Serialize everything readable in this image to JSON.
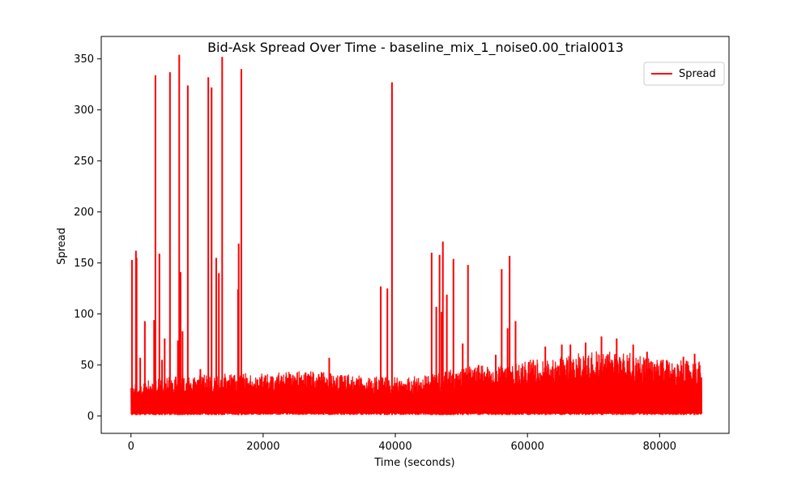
{
  "chart_data": {
    "type": "line",
    "title": "Bid-Ask Spread Over Time - baseline_mix_1_noise0.00_trial0013",
    "xlabel": "Time (seconds)",
    "ylabel": "Spread",
    "xlim": [
      -4500,
      90500
    ],
    "ylim": [
      -17,
      372
    ],
    "xticks": [
      0,
      20000,
      40000,
      60000,
      80000
    ],
    "yticks": [
      0,
      50,
      100,
      150,
      200,
      250,
      300,
      350
    ],
    "grid": false,
    "legend": {
      "position": "top-right",
      "entries": [
        "Spread"
      ]
    },
    "colors": {
      "series": "#ff0000",
      "axes": "#000000",
      "background": "#ffffff"
    },
    "series": [
      {
        "name": "Spread",
        "x_range": [
          0,
          86400
        ],
        "baseline_min": 1,
        "envelope": [
          [
            0,
            32
          ],
          [
            5000,
            38
          ],
          [
            10000,
            40
          ],
          [
            15000,
            42
          ],
          [
            20000,
            42
          ],
          [
            25000,
            44
          ],
          [
            30000,
            44
          ],
          [
            35000,
            40
          ],
          [
            40000,
            38
          ],
          [
            45000,
            40
          ],
          [
            50000,
            48
          ],
          [
            55000,
            50
          ],
          [
            60000,
            55
          ],
          [
            65000,
            58
          ],
          [
            70000,
            65
          ],
          [
            75000,
            63
          ],
          [
            80000,
            55
          ],
          [
            86400,
            54
          ]
        ],
        "peaks": [
          [
            150,
            153
          ],
          [
            750,
            162
          ],
          [
            850,
            155
          ],
          [
            1400,
            57
          ],
          [
            2100,
            93
          ],
          [
            3500,
            94
          ],
          [
            3700,
            334
          ],
          [
            4300,
            159
          ],
          [
            4700,
            55
          ],
          [
            5100,
            76
          ],
          [
            5900,
            337
          ],
          [
            7100,
            74
          ],
          [
            7300,
            354
          ],
          [
            7500,
            141
          ],
          [
            7800,
            83
          ],
          [
            8600,
            324
          ],
          [
            10500,
            46
          ],
          [
            11700,
            332
          ],
          [
            12200,
            322
          ],
          [
            12900,
            155
          ],
          [
            13300,
            140
          ],
          [
            13800,
            352
          ],
          [
            16200,
            124
          ],
          [
            16300,
            169
          ],
          [
            16700,
            340
          ],
          [
            30000,
            57
          ],
          [
            37800,
            127
          ],
          [
            38800,
            125
          ],
          [
            39500,
            327
          ],
          [
            45500,
            160
          ],
          [
            46200,
            107
          ],
          [
            46700,
            158
          ],
          [
            47000,
            102
          ],
          [
            47200,
            171
          ],
          [
            47800,
            119
          ],
          [
            48800,
            154
          ],
          [
            50200,
            71
          ],
          [
            51000,
            148
          ],
          [
            52600,
            50
          ],
          [
            55200,
            60
          ],
          [
            56100,
            144
          ],
          [
            57000,
            86
          ],
          [
            57300,
            157
          ],
          [
            58200,
            93
          ],
          [
            60200,
            53
          ],
          [
            62700,
            68
          ],
          [
            65200,
            70
          ],
          [
            66500,
            70
          ],
          [
            68800,
            72
          ],
          [
            71200,
            78
          ],
          [
            73500,
            76
          ],
          [
            76000,
            70
          ],
          [
            78100,
            63
          ],
          [
            80500,
            55
          ],
          [
            83600,
            58
          ],
          [
            85300,
            61
          ]
        ]
      }
    ]
  }
}
